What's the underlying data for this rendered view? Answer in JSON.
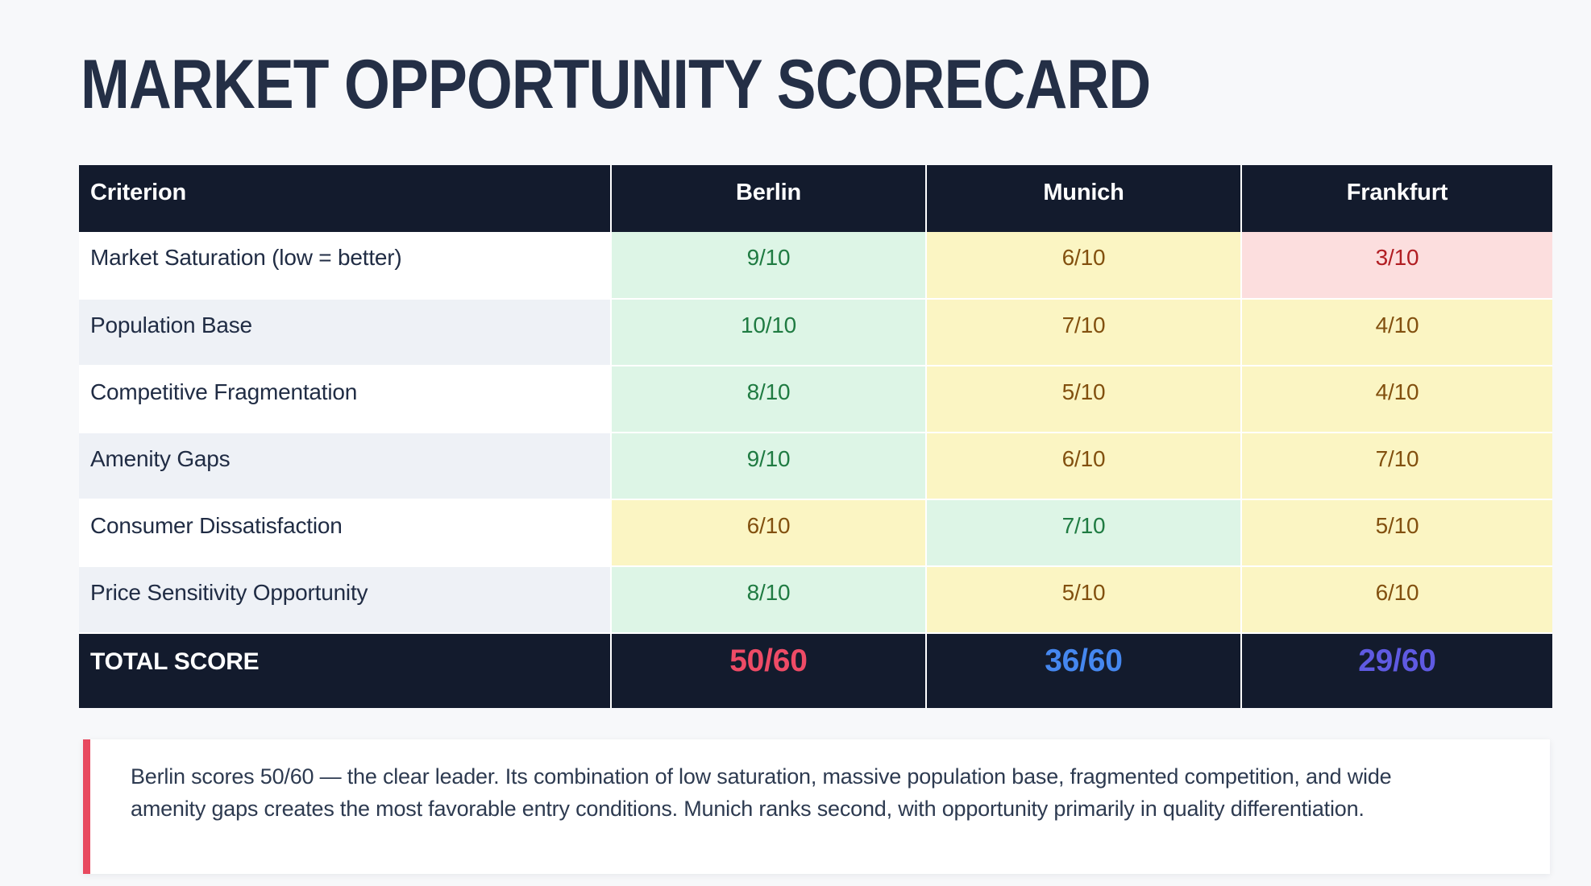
{
  "title": "MARKET OPPORTUNITY SCORECARD",
  "table": {
    "columns": [
      "Criterion",
      "Berlin",
      "Munich",
      "Frankfurt"
    ],
    "rows": [
      {
        "criterion": "Market Saturation (low = better)",
        "scores": [
          {
            "value": "9/10",
            "tone": "green"
          },
          {
            "value": "6/10",
            "tone": "yellow"
          },
          {
            "value": "3/10",
            "tone": "red"
          }
        ]
      },
      {
        "criterion": "Population Base",
        "scores": [
          {
            "value": "10/10",
            "tone": "green"
          },
          {
            "value": "7/10",
            "tone": "yellow"
          },
          {
            "value": "4/10",
            "tone": "yellow"
          }
        ]
      },
      {
        "criterion": "Competitive Fragmentation",
        "scores": [
          {
            "value": "8/10",
            "tone": "green"
          },
          {
            "value": "5/10",
            "tone": "yellow"
          },
          {
            "value": "4/10",
            "tone": "yellow"
          }
        ]
      },
      {
        "criterion": "Amenity Gaps",
        "scores": [
          {
            "value": "9/10",
            "tone": "green"
          },
          {
            "value": "6/10",
            "tone": "yellow"
          },
          {
            "value": "7/10",
            "tone": "yellow"
          }
        ]
      },
      {
        "criterion": "Consumer Dissatisfaction",
        "scores": [
          {
            "value": "6/10",
            "tone": "yellow"
          },
          {
            "value": "7/10",
            "tone": "green"
          },
          {
            "value": "5/10",
            "tone": "yellow"
          }
        ]
      },
      {
        "criterion": "Price Sensitivity Opportunity",
        "scores": [
          {
            "value": "8/10",
            "tone": "green"
          },
          {
            "value": "5/10",
            "tone": "yellow"
          },
          {
            "value": "6/10",
            "tone": "yellow"
          }
        ]
      }
    ],
    "total": {
      "label": "TOTAL SCORE",
      "scores": [
        {
          "value": "50/60",
          "tone": "total-pink"
        },
        {
          "value": "36/60",
          "tone": "total-blue"
        },
        {
          "value": "29/60",
          "tone": "total-indigo"
        }
      ]
    }
  },
  "callout": {
    "text": "Berlin scores 50/60 — the clear leader. Its combination of low saturation, massive population base, fragmented competition, and wide amenity gaps creates the most favorable entry conditions. Munich ranks second, with opportunity primarily in quality differentiation."
  },
  "colors": {
    "header_bg": "#131b2d",
    "score_green_bg": "#ddf5e6",
    "score_green_text": "#1f7b42",
    "score_yellow_bg": "#fbf5c3",
    "score_yellow_text": "#82500f",
    "score_red_bg": "#fcdede",
    "score_red_text": "#b11d22",
    "total_berlin": "#ee4b66",
    "total_munich": "#4587ef",
    "total_frankfurt": "#5f5ae2",
    "callout_accent": "#e8495f"
  }
}
